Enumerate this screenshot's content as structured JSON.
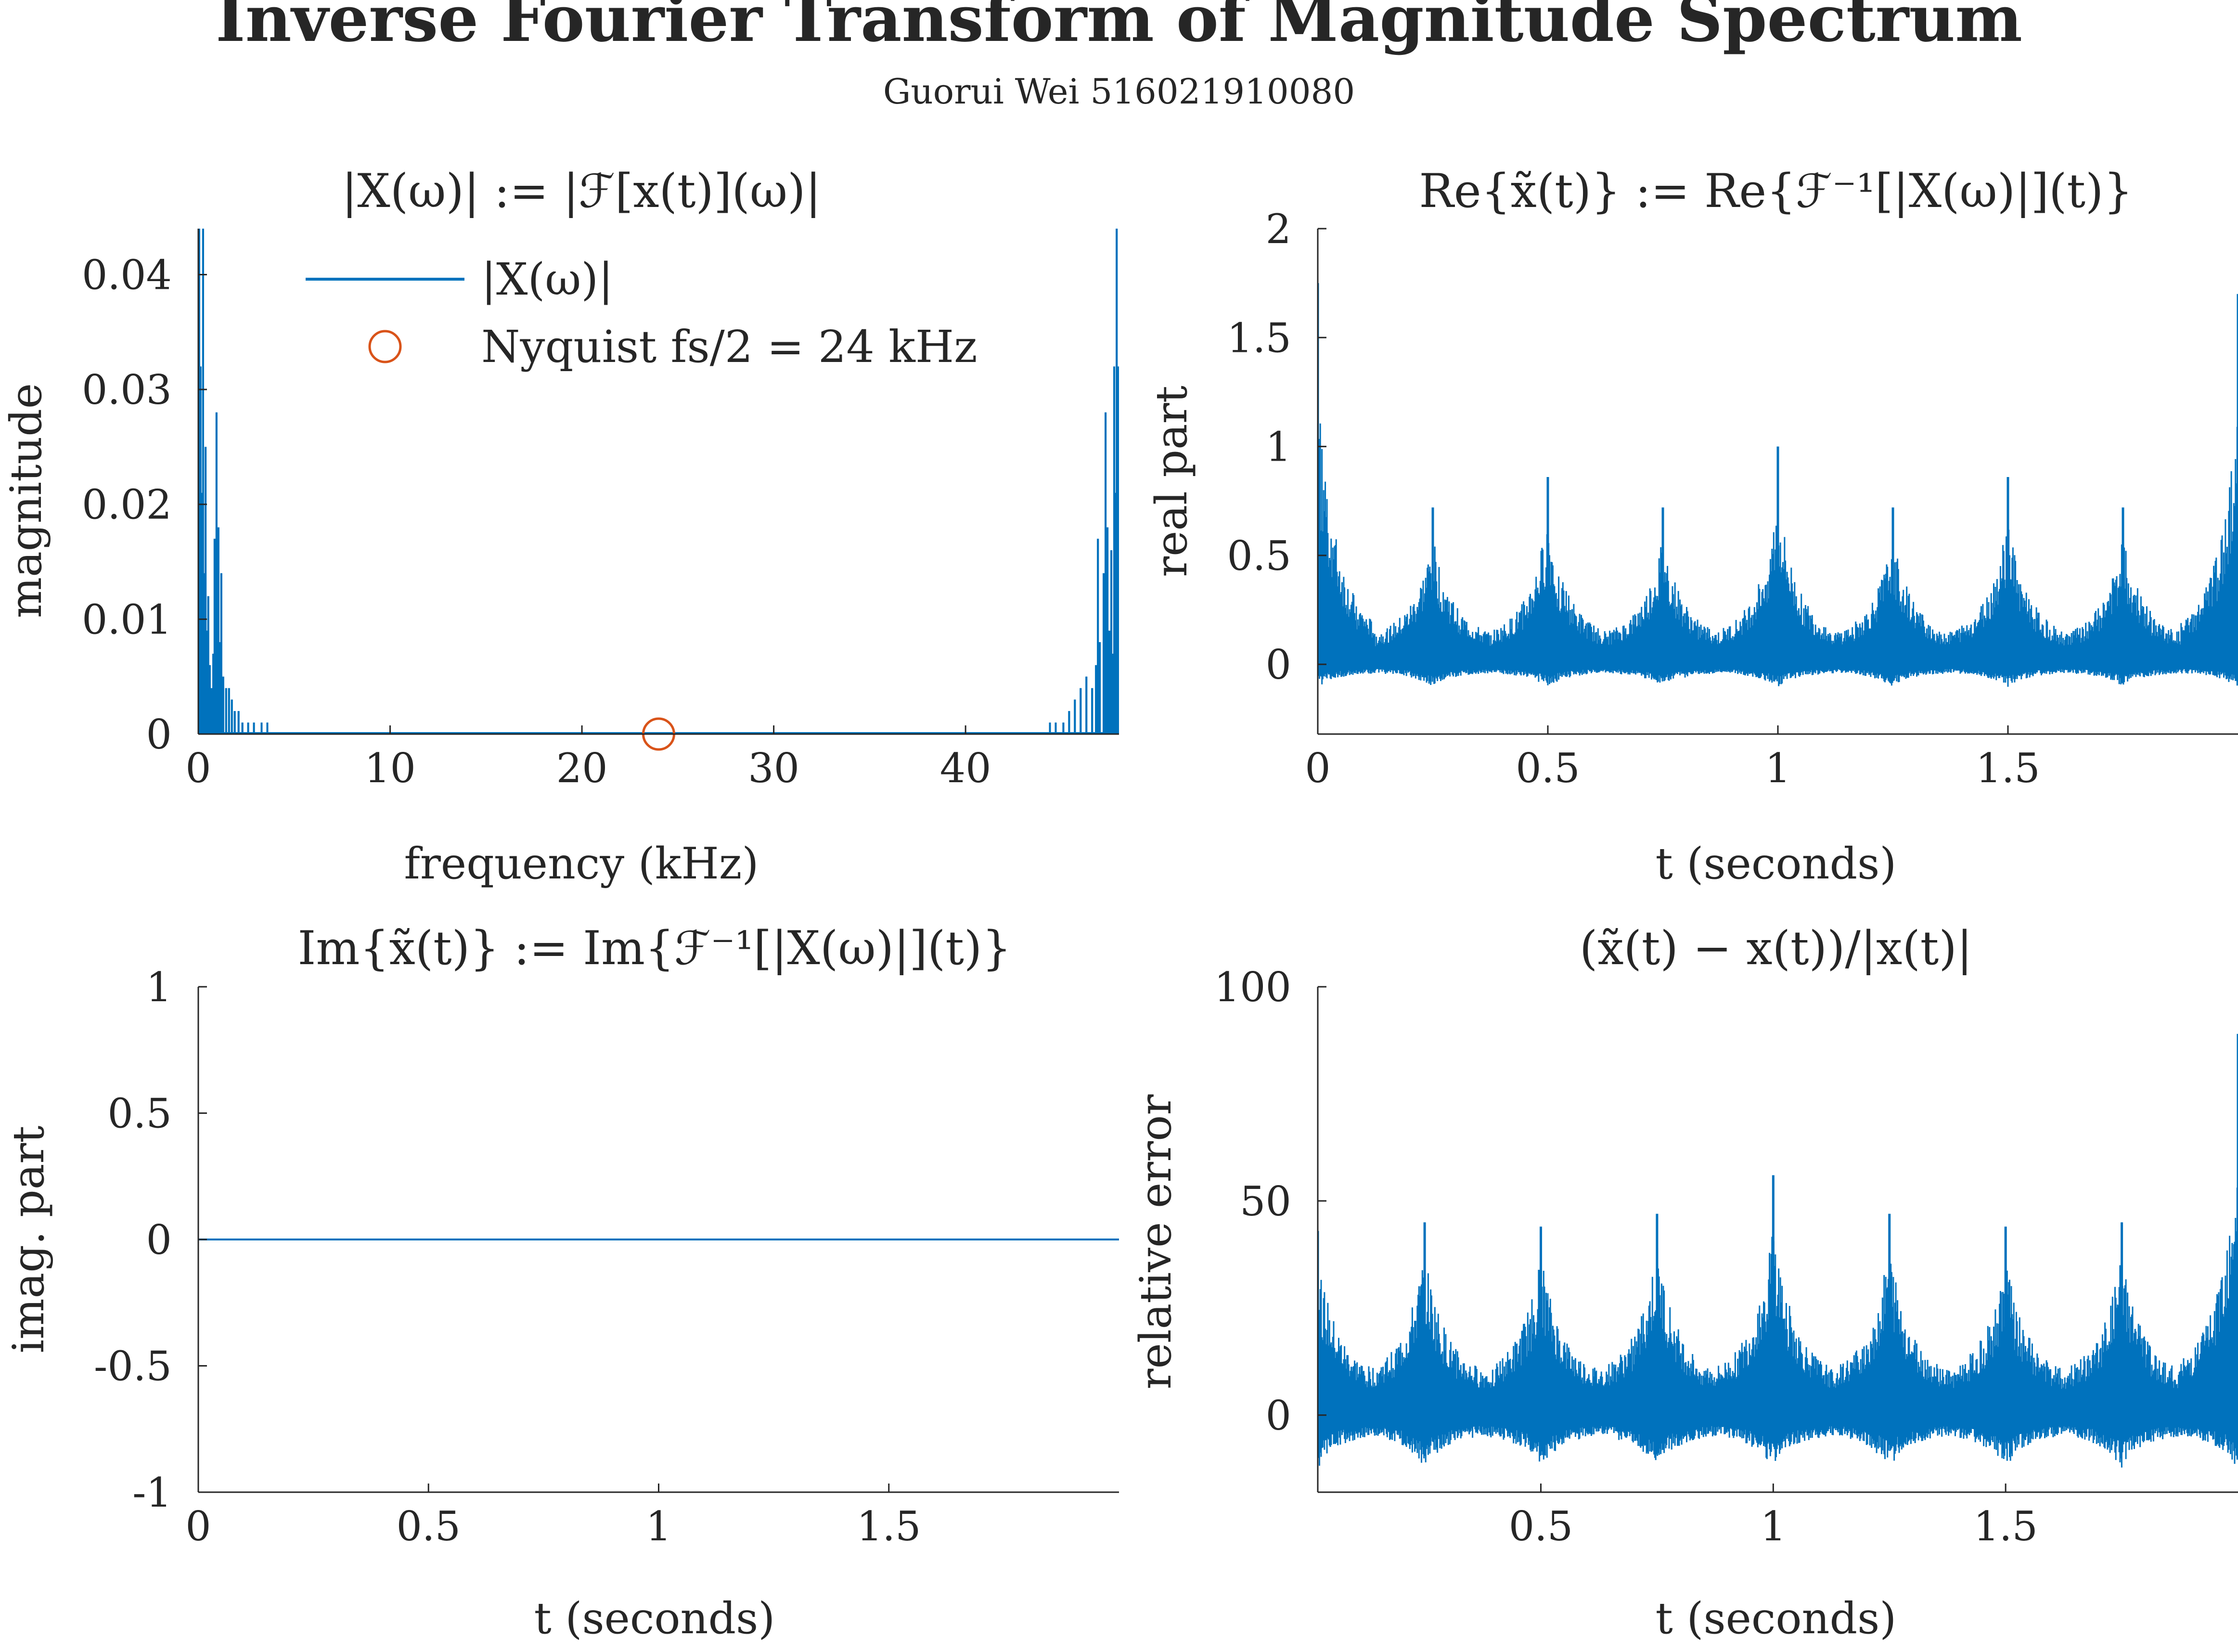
{
  "figure": {
    "title": "Inverse Fourier Transform of Magnitude Spectrum",
    "subtitle": "Guorui Wei 516021910080",
    "colors": {
      "series": "#0072BD",
      "marker": "#D95319",
      "axes": "#262626",
      "background": "#ffffff"
    }
  },
  "chart_data": [
    {
      "type": "line",
      "title": "|X(ω)| := |ℱ[x(t)](ω)|",
      "xlabel": "frequency (kHz)",
      "ylabel": "magnitude",
      "xlim": [
        0,
        48
      ],
      "ylim": [
        0,
        0.044
      ],
      "xticks": [
        0,
        10,
        20,
        30,
        40
      ],
      "yticks": [
        0,
        0.01,
        0.02,
        0.03,
        0.04
      ],
      "xtick_labels": [
        "0",
        "10",
        "20",
        "30",
        "40"
      ],
      "ytick_labels": [
        "0",
        "0.01",
        "0.02",
        "0.03",
        "0.04"
      ],
      "grid": false,
      "legend": {
        "placement": "top-center",
        "entries": [
          "|X(ω)|",
          "Nyquist fs/2 = 24 kHz"
        ]
      },
      "series": [
        {
          "name": "|X(ω)|",
          "style": "spikes",
          "x": [
            0.05,
            0.12,
            0.18,
            0.25,
            0.32,
            0.38,
            0.45,
            0.52,
            0.6,
            0.7,
            0.78,
            0.85,
            0.95,
            1.05,
            1.12,
            1.2,
            1.3,
            1.45,
            1.6,
            1.75,
            1.9,
            2.1,
            2.3,
            2.6,
            2.9,
            3.3,
            3.6,
            44.4,
            44.7,
            45.1,
            45.4,
            45.7,
            46.0,
            46.3,
            46.6,
            46.8,
            46.9,
            47.0,
            47.2,
            47.3,
            47.4,
            47.5,
            47.6,
            47.7,
            47.75,
            47.8,
            47.88,
            47.95
          ],
          "y": [
            0.044,
            0.032,
            0.021,
            0.044,
            0.014,
            0.025,
            0.009,
            0.012,
            0.006,
            0.004,
            0.007,
            0.017,
            0.028,
            0.018,
            0.008,
            0.014,
            0.005,
            0.004,
            0.004,
            0.003,
            0.002,
            0.002,
            0.001,
            0.001,
            0.001,
            0.001,
            0.001,
            0.001,
            0.001,
            0.001,
            0.002,
            0.003,
            0.004,
            0.005,
            0.004,
            0.006,
            0.017,
            0.008,
            0.014,
            0.028,
            0.018,
            0.009,
            0.016,
            0.007,
            0.032,
            0.021,
            0.044,
            0.032
          ]
        },
        {
          "name": "Nyquist fs/2 = 24 kHz",
          "style": "marker",
          "x": [
            24
          ],
          "y": [
            0
          ]
        }
      ]
    },
    {
      "type": "line",
      "title": "Re{x̃(t)} := Re{ℱ⁻¹[|X(ω)|](t)}",
      "xlabel": "t (seconds)",
      "ylabel": "real part",
      "xlim": [
        0,
        2
      ],
      "ylim": [
        -0.32,
        2
      ],
      "xticks": [
        0,
        0.5,
        1,
        1.5
      ],
      "yticks": [
        0,
        0.5,
        1,
        1.5,
        2
      ],
      "xtick_labels": [
        "0",
        "0.5",
        "1",
        "1.5"
      ],
      "ytick_labels": [
        "0",
        "0.5",
        "1",
        "1.5",
        "2"
      ],
      "grid": false,
      "series": [
        {
          "name": "Re{x̃(t)}",
          "style": "dense-periodic",
          "period": 0.25,
          "peak_times": [
            0,
            0.25,
            0.5,
            0.75,
            1,
            1.25,
            1.5,
            1.75,
            2
          ],
          "peak_values": [
            1.75,
            0.72,
            0.86,
            0.72,
            1.0,
            0.72,
            0.86,
            0.72,
            1.7
          ],
          "envelope_min": -0.15
        }
      ]
    },
    {
      "type": "line",
      "title": "Im{x̃(t)} := Im{ℱ⁻¹[|X(ω)|](t)}",
      "xlabel": "t (seconds)",
      "ylabel": "imag. part",
      "xlim": [
        0,
        2
      ],
      "ylim": [
        -1,
        1
      ],
      "xticks": [
        0,
        0.5,
        1,
        1.5
      ],
      "yticks": [
        -1,
        -0.5,
        0,
        0.5,
        1
      ],
      "xtick_labels": [
        "0",
        "0.5",
        "1",
        "1.5"
      ],
      "ytick_labels": [
        "-1",
        "-0.5",
        "0",
        "0.5",
        "1"
      ],
      "grid": false,
      "series": [
        {
          "name": "Im{x̃(t)}",
          "style": "line",
          "x": [
            0,
            2
          ],
          "y": [
            0,
            0
          ]
        }
      ]
    },
    {
      "type": "line",
      "title": "(x̃(t) − x(t))/|x(t)|",
      "xlabel": "t (seconds)",
      "ylabel": "relative error",
      "xlim": [
        0.02,
        2
      ],
      "ylim": [
        -18,
        100
      ],
      "xticks": [
        0.5,
        1,
        1.5
      ],
      "yticks": [
        0,
        50,
        100
      ],
      "xtick_labels": [
        "0.5",
        "1",
        "1.5"
      ],
      "ytick_labels": [
        "0",
        "50",
        "100"
      ],
      "grid": false,
      "series": [
        {
          "name": "relative error",
          "style": "dense-periodic",
          "period": 0.25,
          "peak_times": [
            0.02,
            0.25,
            0.5,
            0.75,
            1,
            1.25,
            1.5,
            1.75,
            2
          ],
          "peak_values": [
            43,
            45,
            44,
            47,
            56,
            47,
            44,
            45,
            89
          ],
          "envelope_min": -18
        }
      ]
    }
  ]
}
